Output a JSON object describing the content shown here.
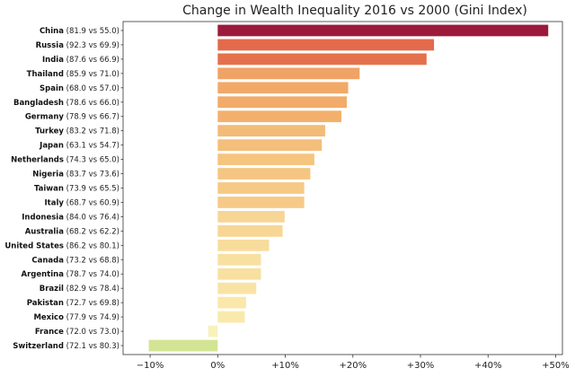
{
  "chart_data": {
    "type": "bar",
    "orientation": "horizontal",
    "title": "Change in Wealth Inequality 2016 vs 2000 (Gini Index)",
    "xlabel": "",
    "ylabel": "",
    "xlim": [
      -14,
      51
    ],
    "xticks": [
      -10,
      0,
      10,
      20,
      30,
      40,
      50
    ],
    "xtick_labels": [
      "−10%",
      "0%",
      "+10%",
      "+20%",
      "+30%",
      "+40%",
      "+50%"
    ],
    "grid": false,
    "bars": [
      {
        "country": "China",
        "detail": "(81.9 vs 55.0)",
        "value": 48.9,
        "color": "#9b1a3b"
      },
      {
        "country": "Russia",
        "detail": "(92.3 vs 69.9)",
        "value": 32.0,
        "color": "#e36a4b"
      },
      {
        "country": "India",
        "detail": "(87.6 vs 66.9)",
        "value": 30.9,
        "color": "#e5704c"
      },
      {
        "country": "Thailand",
        "detail": "(85.9 vs 71.0)",
        "value": 21.0,
        "color": "#f0a365"
      },
      {
        "country": "Spain",
        "detail": "(68.0 vs 57.0)",
        "value": 19.3,
        "color": "#f2a968"
      },
      {
        "country": "Bangladesh",
        "detail": "(78.6 vs 66.0)",
        "value": 19.1,
        "color": "#f2ab6a"
      },
      {
        "country": "Germany",
        "detail": "(78.9 vs 66.7)",
        "value": 18.3,
        "color": "#f3b06d"
      },
      {
        "country": "Turkey",
        "detail": "(83.2 vs 71.8)",
        "value": 15.9,
        "color": "#f3bb78"
      },
      {
        "country": "Japan",
        "detail": "(63.1 vs 54.7)",
        "value": 15.4,
        "color": "#f4be7b"
      },
      {
        "country": "Netherlands",
        "detail": "(74.3 vs 65.0)",
        "value": 14.3,
        "color": "#f5c47f"
      },
      {
        "country": "Nigeria",
        "detail": "(83.7 vs 73.6)",
        "value": 13.7,
        "color": "#f5c682"
      },
      {
        "country": "Taiwan",
        "detail": "(73.9 vs 65.5)",
        "value": 12.8,
        "color": "#f6c985"
      },
      {
        "country": "Italy",
        "detail": "(68.7 vs 60.9)",
        "value": 12.8,
        "color": "#f6ca86"
      },
      {
        "country": "Indonesia",
        "detail": "(84.0 vs 76.4)",
        "value": 9.9,
        "color": "#f7d595"
      },
      {
        "country": "Australia",
        "detail": "(68.2 vs 62.2)",
        "value": 9.6,
        "color": "#f7d696"
      },
      {
        "country": "United States",
        "detail": "(86.2 vs 80.1)",
        "value": 7.6,
        "color": "#f8dc9c"
      },
      {
        "country": "Canada",
        "detail": "(73.2 vs 68.8)",
        "value": 6.4,
        "color": "#f8e0a1"
      },
      {
        "country": "Argentina",
        "detail": "(78.7 vs 74.0)",
        "value": 6.4,
        "color": "#f8e0a1"
      },
      {
        "country": "Brazil",
        "detail": "(82.9 vs 78.4)",
        "value": 5.7,
        "color": "#f9e3a4"
      },
      {
        "country": "Pakistan",
        "detail": "(72.7 vs 69.8)",
        "value": 4.2,
        "color": "#f9e8aa"
      },
      {
        "country": "Mexico",
        "detail": "(77.9 vs 74.9)",
        "value": 4.0,
        "color": "#f9e9ab"
      },
      {
        "country": "France",
        "detail": "(72.0 vs 73.0)",
        "value": -1.4,
        "color": "#f7f3ba"
      },
      {
        "country": "Switzerland",
        "detail": "(72.1 vs 80.3)",
        "value": -10.2,
        "color": "#d3e594"
      }
    ]
  }
}
